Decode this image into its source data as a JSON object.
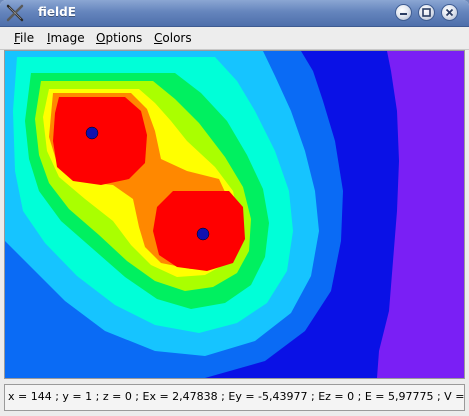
{
  "window": {
    "title": "fieldE",
    "icon": "crossed-tools-icon"
  },
  "window_controls": {
    "minimize_icon": "minimize-icon",
    "maximize_icon": "maximize-icon",
    "close_icon": "close-icon"
  },
  "menu": {
    "items": [
      {
        "label": "File",
        "mnemonic": "F",
        "rest": "ile"
      },
      {
        "label": "Image",
        "mnemonic": "I",
        "rest": "mage"
      },
      {
        "label": "Options",
        "mnemonic": "O",
        "rest": "ptions"
      },
      {
        "label": "Colors",
        "mnemonic": "C",
        "rest": "olors"
      }
    ]
  },
  "status": {
    "text": "x = 144 ; y = 1 ; z = 0 ; Ex = 2,47838 ; Ey = -5,43977 ; Ez = 0 ; E = 5,97775 ; V = 7,"
  },
  "field_colors": {
    "levels": [
      "#7a1ff5",
      "#0a11e6",
      "#0a6bf5",
      "#16c4ff",
      "#00ffd8",
      "#00f060",
      "#aaff00",
      "#ffff00",
      "#ff8800",
      "#ff0000"
    ],
    "charge_marker": "#1010b0"
  }
}
